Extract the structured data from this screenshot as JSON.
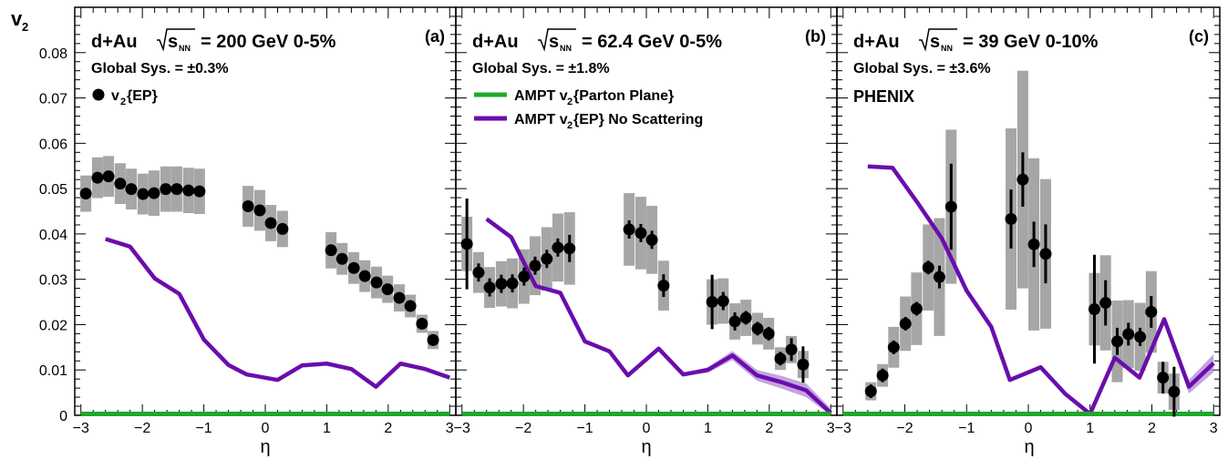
{
  "y_axis_label": "v",
  "y_axis_label_sub": "2",
  "x_axis_label": "η",
  "chart_data": [
    {
      "type": "scatter",
      "panel_tag": "(a)",
      "title": {
        "system": "d+Au",
        "sqrt": "s",
        "sqrt_sub": "NN",
        "energy_rest": "= 200 GeV 0-5%"
      },
      "sys_text": "Global Sys. = ±0.3%",
      "legend": [
        {
          "kind": "marker",
          "label": "v",
          "sub": "2",
          "rest": "{EP}"
        }
      ],
      "xlim": [
        -3.1,
        3.1
      ],
      "ylim": [
        0,
        0.09
      ],
      "xticks": [
        -3,
        -2,
        -1,
        0,
        1,
        2,
        3
      ],
      "yticks": [
        0.01,
        0.02,
        0.03,
        0.04,
        0.05,
        0.06,
        0.07,
        0.08
      ],
      "ytick_labels": [
        "0.01",
        "0.02",
        "0.03",
        "0.04",
        "0.05",
        "0.06",
        "0.07",
        "0.08"
      ],
      "zero_label": "0",
      "data": [
        {
          "x": -2.92,
          "y": 0.0489,
          "stat": 0.0007,
          "sys": 0.004
        },
        {
          "x": -2.73,
          "y": 0.0524,
          "stat": 0.0007,
          "sys": 0.0045
        },
        {
          "x": -2.55,
          "y": 0.0527,
          "stat": 0.0007,
          "sys": 0.0045
        },
        {
          "x": -2.36,
          "y": 0.0511,
          "stat": 0.0007,
          "sys": 0.0045
        },
        {
          "x": -2.18,
          "y": 0.0499,
          "stat": 0.0007,
          "sys": 0.0045
        },
        {
          "x": -1.99,
          "y": 0.0488,
          "stat": 0.0007,
          "sys": 0.0045
        },
        {
          "x": -1.81,
          "y": 0.049,
          "stat": 0.0007,
          "sys": 0.005
        },
        {
          "x": -1.62,
          "y": 0.0499,
          "stat": 0.0007,
          "sys": 0.005
        },
        {
          "x": -1.44,
          "y": 0.0499,
          "stat": 0.0007,
          "sys": 0.005
        },
        {
          "x": -1.25,
          "y": 0.0496,
          "stat": 0.0007,
          "sys": 0.005
        },
        {
          "x": -1.07,
          "y": 0.0494,
          "stat": 0.0007,
          "sys": 0.005
        },
        {
          "x": -0.28,
          "y": 0.0461,
          "stat": 0.0008,
          "sys": 0.0045
        },
        {
          "x": -0.09,
          "y": 0.0452,
          "stat": 0.0008,
          "sys": 0.0045
        },
        {
          "x": 0.09,
          "y": 0.0424,
          "stat": 0.0008,
          "sys": 0.004
        },
        {
          "x": 0.28,
          "y": 0.0411,
          "stat": 0.0008,
          "sys": 0.004
        },
        {
          "x": 1.07,
          "y": 0.0364,
          "stat": 0.0008,
          "sys": 0.004
        },
        {
          "x": 1.25,
          "y": 0.0345,
          "stat": 0.0008,
          "sys": 0.0035
        },
        {
          "x": 1.44,
          "y": 0.0325,
          "stat": 0.0008,
          "sys": 0.0035
        },
        {
          "x": 1.62,
          "y": 0.0307,
          "stat": 0.0008,
          "sys": 0.0035
        },
        {
          "x": 1.81,
          "y": 0.0293,
          "stat": 0.0008,
          "sys": 0.0035
        },
        {
          "x": 1.99,
          "y": 0.0278,
          "stat": 0.0008,
          "sys": 0.003
        },
        {
          "x": 2.18,
          "y": 0.0259,
          "stat": 0.0008,
          "sys": 0.003
        },
        {
          "x": 2.36,
          "y": 0.0241,
          "stat": 0.0008,
          "sys": 0.0025
        },
        {
          "x": 2.55,
          "y": 0.0202,
          "stat": 0.0008,
          "sys": 0.002
        },
        {
          "x": 2.73,
          "y": 0.0166,
          "stat": 0.001,
          "sys": 0.002
        }
      ],
      "curves": [
        {
          "kind": "no_scattering",
          "color": "#6a0dad",
          "band_color": "#b48fd6",
          "x": [
            -2.6,
            -2.2,
            -1.8,
            -1.4,
            -1.0,
            -0.6,
            -0.3,
            0.2,
            0.6,
            1.0,
            1.4,
            1.8,
            2.2,
            2.6,
            3.0
          ],
          "y": [
            0.0389,
            0.0372,
            0.0302,
            0.0268,
            0.0167,
            0.0111,
            0.009,
            0.0078,
            0.011,
            0.0114,
            0.0102,
            0.0063,
            0.0114,
            0.0102,
            0.0083
          ],
          "err": [
            0.0002,
            0.0002,
            0.0002,
            0.0002,
            0.0002,
            0.0002,
            0.0002,
            0.0002,
            0.0002,
            0.0002,
            0.0002,
            0.0002,
            0.0002,
            0.0002,
            0.0002
          ]
        },
        {
          "kind": "parton_plane",
          "color": "#1fa82a",
          "x": [
            -3.0,
            3.0
          ],
          "y": [
            0.0003,
            0.0003
          ]
        }
      ]
    },
    {
      "type": "scatter",
      "panel_tag": "(b)",
      "title": {
        "system": "d+Au",
        "sqrt": "s",
        "sqrt_sub": "NN",
        "energy_rest": "= 62.4 GeV 0-5%"
      },
      "sys_text": "Global Sys. = ±1.8%",
      "legend": [
        {
          "kind": "line",
          "color": "#1fa82a",
          "label": "AMPT v",
          "sub": "2",
          "rest": "{Parton Plane}"
        },
        {
          "kind": "line",
          "color": "#6a0dad",
          "label": "AMPT v",
          "sub": "2",
          "rest": "{EP} No Scattering"
        }
      ],
      "xlim": [
        -3.1,
        3.1
      ],
      "ylim": [
        0,
        0.09
      ],
      "xticks": [
        -3,
        -2,
        -1,
        0,
        1,
        2,
        3
      ],
      "data": [
        {
          "x": -2.92,
          "y": 0.0378,
          "stat": 0.01,
          "sys": 0.006
        },
        {
          "x": -2.73,
          "y": 0.0315,
          "stat": 0.002,
          "sys": 0.0045
        },
        {
          "x": -2.55,
          "y": 0.0282,
          "stat": 0.002,
          "sys": 0.0045
        },
        {
          "x": -2.36,
          "y": 0.029,
          "stat": 0.002,
          "sys": 0.005
        },
        {
          "x": -2.18,
          "y": 0.0291,
          "stat": 0.002,
          "sys": 0.0055
        },
        {
          "x": -1.99,
          "y": 0.0306,
          "stat": 0.002,
          "sys": 0.006
        },
        {
          "x": -1.81,
          "y": 0.033,
          "stat": 0.002,
          "sys": 0.0065
        },
        {
          "x": -1.62,
          "y": 0.0345,
          "stat": 0.002,
          "sys": 0.007
        },
        {
          "x": -1.44,
          "y": 0.037,
          "stat": 0.002,
          "sys": 0.0075
        },
        {
          "x": -1.25,
          "y": 0.0368,
          "stat": 0.003,
          "sys": 0.008
        },
        {
          "x": -0.28,
          "y": 0.041,
          "stat": 0.002,
          "sys": 0.008
        },
        {
          "x": -0.09,
          "y": 0.0402,
          "stat": 0.002,
          "sys": 0.008
        },
        {
          "x": 0.09,
          "y": 0.0387,
          "stat": 0.002,
          "sys": 0.0075
        },
        {
          "x": 0.28,
          "y": 0.0286,
          "stat": 0.0025,
          "sys": 0.0055
        },
        {
          "x": 1.07,
          "y": 0.025,
          "stat": 0.006,
          "sys": 0.005
        },
        {
          "x": 1.25,
          "y": 0.0252,
          "stat": 0.002,
          "sys": 0.005
        },
        {
          "x": 1.44,
          "y": 0.0207,
          "stat": 0.002,
          "sys": 0.004
        },
        {
          "x": 1.62,
          "y": 0.0215,
          "stat": 0.0015,
          "sys": 0.004
        },
        {
          "x": 1.81,
          "y": 0.0191,
          "stat": 0.0015,
          "sys": 0.0035
        },
        {
          "x": 1.99,
          "y": 0.018,
          "stat": 0.0015,
          "sys": 0.0035
        },
        {
          "x": 2.18,
          "y": 0.0125,
          "stat": 0.0015,
          "sys": 0.0025
        },
        {
          "x": 2.36,
          "y": 0.0145,
          "stat": 0.0025,
          "sys": 0.003
        },
        {
          "x": 2.55,
          "y": 0.0112,
          "stat": 0.004,
          "sys": 0.003
        }
      ],
      "curves": [
        {
          "kind": "no_scattering",
          "color": "#6a0dad",
          "band_color": "#b48fd6",
          "x": [
            -2.6,
            -2.2,
            -1.8,
            -1.4,
            -1.0,
            -0.6,
            -0.3,
            0.2,
            0.6,
            1.0,
            1.4,
            1.8,
            2.2,
            2.6,
            3.0
          ],
          "y": [
            0.0433,
            0.0393,
            0.0285,
            0.027,
            0.0163,
            0.0141,
            0.0088,
            0.0147,
            0.009,
            0.01,
            0.0132,
            0.0088,
            0.0073,
            0.0055,
            0.0005
          ],
          "err": [
            0.0002,
            0.0002,
            0.0002,
            0.0002,
            0.0002,
            0.0002,
            0.0002,
            0.0002,
            0.0003,
            0.0006,
            0.001,
            0.0012,
            0.0014,
            0.0015,
            0.001
          ]
        },
        {
          "kind": "parton_plane",
          "color": "#1fa82a",
          "x": [
            -3.0,
            3.0
          ],
          "y": [
            0.0003,
            0.0003
          ]
        }
      ]
    },
    {
      "type": "scatter",
      "panel_tag": "(c)",
      "title": {
        "system": "d+Au",
        "sqrt": "s",
        "sqrt_sub": "NN",
        "energy_rest": "= 39 GeV 0-10%"
      },
      "sys_text": "Global Sys. = ±3.6%",
      "extra_label": "PHENIX",
      "legend": [],
      "xlim": [
        -3.1,
        3.1
      ],
      "ylim": [
        0,
        0.09
      ],
      "xticks": [
        -3,
        -2,
        -1,
        0,
        1,
        2,
        3
      ],
      "data": [
        {
          "x": -2.55,
          "y": 0.0053,
          "stat": 0.0015,
          "sys": 0.002
        },
        {
          "x": -2.36,
          "y": 0.0088,
          "stat": 0.0015,
          "sys": 0.0025
        },
        {
          "x": -2.18,
          "y": 0.015,
          "stat": 0.0015,
          "sys": 0.0045
        },
        {
          "x": -1.99,
          "y": 0.0202,
          "stat": 0.0015,
          "sys": 0.006
        },
        {
          "x": -1.81,
          "y": 0.0235,
          "stat": 0.0015,
          "sys": 0.008
        },
        {
          "x": -1.62,
          "y": 0.0326,
          "stat": 0.0015,
          "sys": 0.0095
        },
        {
          "x": -1.44,
          "y": 0.0305,
          "stat": 0.0025,
          "sys": 0.013
        },
        {
          "x": -1.25,
          "y": 0.046,
          "stat": 0.0095,
          "sys": 0.017
        },
        {
          "x": -0.28,
          "y": 0.0433,
          "stat": 0.0065,
          "sys": 0.02
        },
        {
          "x": -0.09,
          "y": 0.052,
          "stat": 0.006,
          "sys": 0.024
        },
        {
          "x": 0.09,
          "y": 0.0377,
          "stat": 0.005,
          "sys": 0.019
        },
        {
          "x": 0.28,
          "y": 0.0356,
          "stat": 0.0065,
          "sys": 0.0165
        },
        {
          "x": 1.07,
          "y": 0.0234,
          "stat": 0.012,
          "sys": 0.008
        },
        {
          "x": 1.25,
          "y": 0.0248,
          "stat": 0.005,
          "sys": 0.0105
        },
        {
          "x": 1.44,
          "y": 0.0163,
          "stat": 0.003,
          "sys": 0.009
        },
        {
          "x": 1.62,
          "y": 0.0179,
          "stat": 0.0025,
          "sys": 0.0075
        },
        {
          "x": 1.81,
          "y": 0.0173,
          "stat": 0.002,
          "sys": 0.0075
        },
        {
          "x": 1.99,
          "y": 0.0228,
          "stat": 0.0035,
          "sys": 0.009
        },
        {
          "x": 2.18,
          "y": 0.0083,
          "stat": 0.0035,
          "sys": 0.0035
        },
        {
          "x": 2.36,
          "y": 0.0052,
          "stat": 0.0055,
          "sys": 0.004
        }
      ],
      "curves": [
        {
          "kind": "no_scattering",
          "color": "#6a0dad",
          "band_color": "#b48fd6",
          "x": [
            -2.6,
            -2.2,
            -1.8,
            -1.4,
            -1.0,
            -0.6,
            -0.3,
            0.2,
            0.6,
            1.0,
            1.4,
            1.8,
            2.2,
            2.6,
            3.0
          ],
          "y": [
            0.0549,
            0.0546,
            0.047,
            0.039,
            0.0275,
            0.0195,
            0.0078,
            0.0106,
            0.0047,
            0.0003,
            0.0127,
            0.0083,
            0.0212,
            0.0063,
            0.0115
          ],
          "err": [
            0.0003,
            0.0003,
            0.0003,
            0.0003,
            0.0003,
            0.0003,
            0.0003,
            0.0003,
            0.0003,
            0.0003,
            0.0004,
            0.0005,
            0.0006,
            0.0015,
            0.002
          ]
        },
        {
          "kind": "parton_plane",
          "color": "#1fa82a",
          "x": [
            -3.0,
            3.0
          ],
          "y": [
            0.0003,
            0.0003
          ]
        }
      ]
    }
  ]
}
